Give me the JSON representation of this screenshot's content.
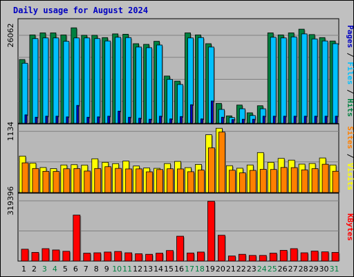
{
  "title": "Daily usage for August 2024",
  "colors": {
    "page_bg": "#c0c0c0",
    "panel_bg": "#b8b8b8",
    "title": "#0000c0",
    "grid": "#808080",
    "hits": "#008040",
    "files": "#00c0ff",
    "pages": "#0000c0",
    "visits": "#ffff00",
    "sites": "#ff8000",
    "kbytes": "#ff0000",
    "weekend": "#008040",
    "weekday": "#000000"
  },
  "chart_data": [
    {
      "type": "bar",
      "name": "hits-files-pages",
      "categories": [
        "1",
        "2",
        "3",
        "4",
        "5",
        "6",
        "7",
        "8",
        "9",
        "10",
        "11",
        "12",
        "13",
        "14",
        "15",
        "16",
        "17",
        "18",
        "19",
        "20",
        "21",
        "22",
        "23",
        "24",
        "25",
        "26",
        "27",
        "28",
        "29",
        "30",
        "31"
      ],
      "weekend_days": [
        "3",
        "4",
        "10",
        "11",
        "17",
        "18",
        "24",
        "25",
        "31"
      ],
      "ytick": "26062",
      "ylim": [
        0,
        31000
      ],
      "right_label": [
        "Pages",
        "Files",
        "Hits"
      ],
      "series": [
        {
          "name": "Hits",
          "values": [
            18900,
            26200,
            26800,
            26800,
            26200,
            28300,
            26100,
            26100,
            25400,
            26500,
            26400,
            23600,
            23400,
            24300,
            14000,
            12500,
            26800,
            26200,
            23600,
            5900,
            2200,
            5400,
            3100,
            5200,
            26800,
            26200,
            26800,
            27900,
            26300,
            25400,
            24400
          ]
        },
        {
          "name": "Files",
          "values": [
            17800,
            25100,
            25300,
            25300,
            24300,
            25300,
            25300,
            25100,
            24400,
            25500,
            25400,
            22600,
            22400,
            23200,
            13000,
            11500,
            25300,
            25400,
            22600,
            4100,
            1700,
            4300,
            2300,
            4300,
            25500,
            25300,
            25600,
            26500,
            25000,
            24400,
            23600
          ]
        },
        {
          "name": "Pages",
          "values": [
            2500,
            1800,
            2100,
            2100,
            1900,
            5300,
            1800,
            1900,
            2100,
            3600,
            1800,
            1500,
            1200,
            2100,
            1300,
            2000,
            5500,
            1300,
            6600,
            1800,
            1100,
            1200,
            1200,
            2100,
            2100,
            2100,
            2100,
            2100,
            2100,
            2100,
            2100
          ]
        }
      ]
    },
    {
      "type": "bar",
      "name": "visits-sites",
      "categories": [
        "1",
        "2",
        "3",
        "4",
        "5",
        "6",
        "7",
        "8",
        "9",
        "10",
        "11",
        "12",
        "13",
        "14",
        "15",
        "16",
        "17",
        "18",
        "19",
        "20",
        "21",
        "22",
        "23",
        "24",
        "25",
        "26",
        "27",
        "28",
        "29",
        "30",
        "31"
      ],
      "ytick": "1134",
      "ylim": [
        0,
        1270
      ],
      "right_label": [
        "Sites",
        "Visits"
      ],
      "series": [
        {
          "name": "Visits",
          "values": [
            675,
            545,
            463,
            443,
            510,
            516,
            509,
            625,
            560,
            535,
            583,
            491,
            455,
            448,
            536,
            576,
            461,
            520,
            1070,
            1190,
            497,
            450,
            510,
            740,
            560,
            632,
            600,
            526,
            538,
            640,
            510
          ]
        },
        {
          "name": "Sites",
          "values": [
            550,
            445,
            393,
            390,
            440,
            444,
            398,
            445,
            478,
            447,
            437,
            438,
            384,
            426,
            440,
            437,
            386,
            416,
            827,
            1120,
            413,
            364,
            410,
            430,
            427,
            464,
            461,
            420,
            442,
            524,
            394
          ]
        }
      ]
    },
    {
      "type": "bar",
      "name": "kbytes",
      "categories": [
        "1",
        "2",
        "3",
        "4",
        "5",
        "6",
        "7",
        "8",
        "9",
        "10",
        "11",
        "12",
        "13",
        "14",
        "15",
        "16",
        "17",
        "18",
        "19",
        "20",
        "21",
        "22",
        "23",
        "24",
        "25",
        "26",
        "27",
        "28",
        "29",
        "30",
        "31"
      ],
      "ytick": "319396",
      "ylim": [
        0,
        360000
      ],
      "right_label": [
        "KBytes"
      ],
      "series": [
        {
          "name": "KBytes",
          "values": [
            63000,
            46000,
            66000,
            59000,
            52000,
            244000,
            42000,
            44000,
            48000,
            51000,
            44000,
            39000,
            36000,
            42000,
            56000,
            132000,
            43000,
            48000,
            317000,
            137000,
            27000,
            36000,
            30000,
            30000,
            42000,
            57000,
            66000,
            44000,
            53000,
            49000,
            46000
          ]
        }
      ]
    }
  ]
}
